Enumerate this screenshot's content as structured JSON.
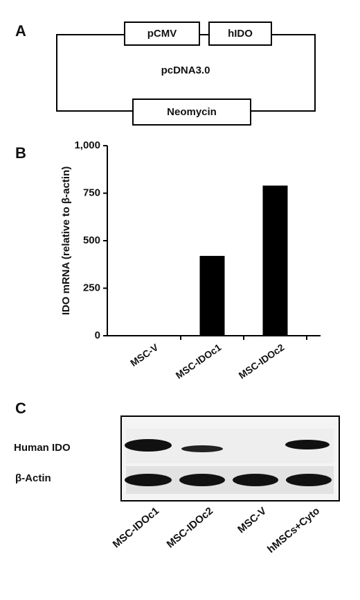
{
  "panel_a": {
    "label": "A",
    "promoter": "pCMV",
    "gene": "hIDO",
    "vector": "pcDNA3.0",
    "marker": "Neomycin"
  },
  "chart_data": {
    "type": "bar",
    "panel_label": "B",
    "y_label": "IDO mRNA (relative to β-actin)",
    "categories": [
      "MSC-V",
      "MSC-IDOc1",
      "MSC-IDOc2"
    ],
    "values": [
      0,
      420,
      790
    ],
    "color": "#000000",
    "ylim": [
      0,
      1000
    ],
    "yticks": [
      0,
      250,
      500,
      750,
      {
        "value": 1000,
        "label": "1,000"
      }
    ],
    "grid": false
  },
  "panel_c": {
    "label": "C",
    "rows": [
      "Human IDO",
      "β-Actin"
    ],
    "lanes": [
      "MSC-IDOc1",
      "MSC-IDOc2",
      "MSC-V",
      "hMSCs+Cyto"
    ]
  }
}
